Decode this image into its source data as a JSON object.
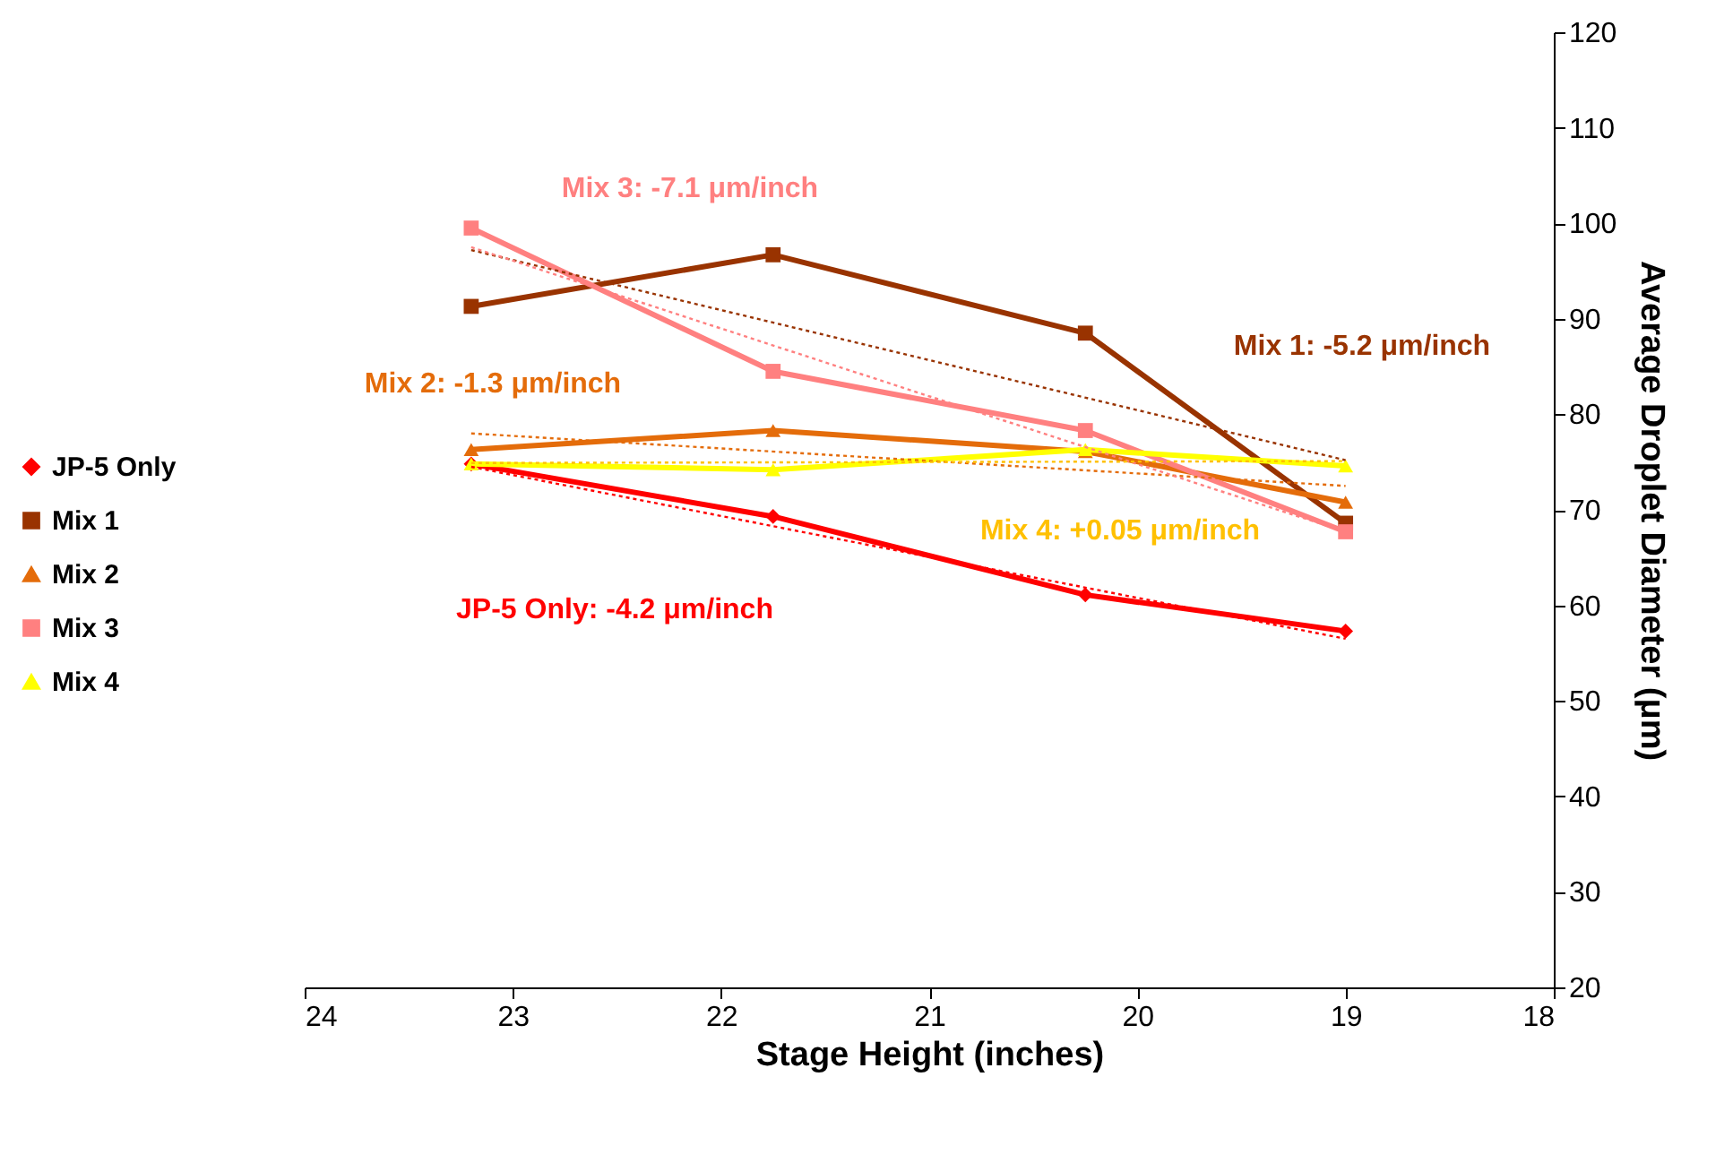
{
  "chart_data": {
    "type": "line",
    "xlabel": "Stage Height (inches)",
    "ylabel": "Average Droplet Diameter (μm)",
    "xlim": [
      24,
      18
    ],
    "xticks": [
      24,
      23,
      22,
      21,
      20,
      19,
      18
    ],
    "ylim": [
      20,
      120
    ],
    "yticks": [
      20,
      30,
      40,
      50,
      60,
      70,
      80,
      90,
      100,
      110,
      120
    ],
    "grid": false,
    "legend": "left",
    "line_style": "solid",
    "series": [
      {
        "name": "JP-5 Only",
        "color": "#ff0000",
        "marker": "diamond",
        "x": [
          23.2,
          21.75,
          20.25,
          19
        ],
        "values": [
          74.8,
          69.3,
          61.1,
          57.3
        ]
      },
      {
        "name": "Mix 1",
        "color": "#993300",
        "marker": "square",
        "x": [
          23.2,
          21.75,
          20.25,
          19
        ],
        "values": [
          91.3,
          96.7,
          88.5,
          68.6
        ]
      },
      {
        "name": "Mix 2",
        "color": "#e46c0a",
        "marker": "triangle",
        "x": [
          23.2,
          21.75,
          20.25,
          19
        ],
        "values": [
          76.3,
          78.3,
          76.1,
          70.8
        ]
      },
      {
        "name": "Mix 3",
        "color": "#ff8080",
        "marker": "square",
        "x": [
          23.2,
          21.75,
          20.25,
          19
        ],
        "values": [
          99.5,
          84.5,
          78.3,
          67.7
        ]
      },
      {
        "name": "Mix 4",
        "color": "#ffff00",
        "marker": "triangle",
        "x": [
          23.2,
          21.75,
          20.25,
          19
        ],
        "values": [
          74.8,
          74.2,
          76.3,
          74.6
        ]
      },
      {
        "type": "line",
        "color": "#ff0000",
        "marker": "none",
        "line_style": "dotted",
        "x": [
          23.2,
          19
        ],
        "values": [
          74.5,
          56.5
        ]
      },
      {
        "type": "line",
        "color": "#993300",
        "marker": "none",
        "line_style": "dotted",
        "x": [
          23.2,
          19
        ],
        "values": [
          97.2,
          75.2
        ]
      },
      {
        "type": "line",
        "color": "#e46c0a",
        "marker": "none",
        "line_style": "dotted",
        "x": [
          23.2,
          19
        ],
        "values": [
          78,
          72.5
        ]
      },
      {
        "type": "line",
        "color": "#ff8080",
        "marker": "none",
        "line_style": "dotted",
        "x": [
          23.2,
          19
        ],
        "values": [
          97.5,
          67.7
        ]
      },
      {
        "type": "line",
        "color": "#ffc000",
        "marker": "none",
        "line_style": "dotted",
        "x": [
          23.2,
          19
        ],
        "values": [
          74.9,
          75.1
        ]
      }
    ],
    "annotations": [
      "JP-5 Only: -4.2 μm/inch",
      "Mix 1: -5.2 μm/inch",
      "Mix 2: -1.3 μm/inch",
      "Mix 3: -7.1 μm/inch",
      "Mix 4: +0.05 μm/inch"
    ]
  }
}
